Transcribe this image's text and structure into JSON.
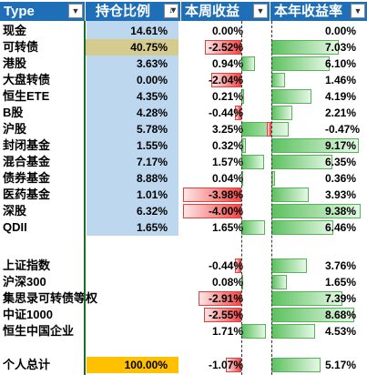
{
  "headers": {
    "type": "Type",
    "holding_ratio": "持仓比例",
    "weekly_return": "本周收益",
    "yearly_return": "本年收益率"
  },
  "colors": {
    "header_bg": "#1f6fb8",
    "holding_bg": "#bdd7ee",
    "highlight_yellow": "#ffc000",
    "highlight_khaki": "#d6cb8e",
    "positive_bar": "#5cc15f",
    "negative_bar": "#f04848",
    "divider_green": "#1e6b2e"
  },
  "rows": [
    {
      "type": "现金",
      "holding": "14.61%",
      "week": "0.00%",
      "week_value": 0.0,
      "year": "0.00%",
      "year_value": 0.0
    },
    {
      "type": "可转债",
      "holding": "40.75%",
      "week": "-2.52%",
      "week_value": -2.52,
      "year": "7.03%",
      "year_value": 7.03,
      "holding_highlight": "khaki"
    },
    {
      "type": "港股",
      "holding": "3.63%",
      "week": "0.94%",
      "week_value": 0.94,
      "year": "6.10%",
      "year_value": 6.1
    },
    {
      "type": "大盘转债",
      "holding": "0.00%",
      "week": "-2.04%",
      "week_value": -2.04,
      "year": "1.46%",
      "year_value": 1.46
    },
    {
      "type": "恒生ETE",
      "holding": "4.35%",
      "week": "0.21%",
      "week_value": 0.21,
      "year": "4.19%",
      "year_value": 4.19
    },
    {
      "type": "B股",
      "holding": "4.28%",
      "week": "-0.44%",
      "week_value": -0.44,
      "year": "2.21%",
      "year_value": 2.21
    },
    {
      "type": "沪股",
      "holding": "5.78%",
      "week": "3.25%",
      "week_value": 3.25,
      "year": "-0.47%",
      "year_value": -0.47
    },
    {
      "type": "封闭基金",
      "holding": "1.55%",
      "week": "0.32%",
      "week_value": 0.32,
      "year": "9.17%",
      "year_value": 9.17
    },
    {
      "type": "混合基金",
      "holding": "7.17%",
      "week": "1.57%",
      "week_value": 1.57,
      "year": "6.35%",
      "year_value": 6.35
    },
    {
      "type": "债券基金",
      "holding": "8.88%",
      "week": "0.04%",
      "week_value": 0.04,
      "year": "0.36%",
      "year_value": 0.36
    },
    {
      "type": "医药基金",
      "holding": "1.01%",
      "week": "-3.98%",
      "week_value": -3.98,
      "year": "3.93%",
      "year_value": 3.93
    },
    {
      "type": "深股",
      "holding": "6.32%",
      "week": "-4.00%",
      "week_value": -4.0,
      "year": "9.38%",
      "year_value": 9.38
    },
    {
      "type": "QDII",
      "holding": "1.65%",
      "week": "1.65%",
      "week_value": 1.65,
      "year": "6.46%",
      "year_value": 6.46
    },
    {
      "type": "",
      "holding": "",
      "week": "",
      "week_value": null,
      "year": "",
      "year_value": null,
      "blank": true
    },
    {
      "type": "上证指数",
      "holding": "",
      "week": "-0.44%",
      "week_value": -0.44,
      "year": "3.76%",
      "year_value": 3.76,
      "no_holding_bg": true
    },
    {
      "type": "沪深300",
      "holding": "",
      "week": "0.08%",
      "week_value": 0.08,
      "year": "1.65%",
      "year_value": 1.65,
      "no_holding_bg": true
    },
    {
      "type": "集思录可转债等权",
      "holding": "",
      "week": "-2.91%",
      "week_value": -2.91,
      "year": "7.39%",
      "year_value": 7.39,
      "no_holding_bg": true
    },
    {
      "type": "中证1000",
      "holding": "",
      "week": "-2.55%",
      "week_value": -2.55,
      "year": "8.68%",
      "year_value": 8.68,
      "no_holding_bg": true
    },
    {
      "type": "恒生中国企业",
      "holding": "",
      "week": "1.71%",
      "week_value": 1.71,
      "year": "4.53%",
      "year_value": 4.53,
      "no_holding_bg": true
    },
    {
      "type": "",
      "holding": "",
      "week": "",
      "week_value": null,
      "year": "",
      "year_value": null,
      "blank": true
    },
    {
      "type": "个人总计",
      "holding": "100.00%",
      "week": "-1.07%",
      "week_value": -1.07,
      "year": "5.17%",
      "year_value": 5.17,
      "holding_highlight": "yellow",
      "no_holding_bg": true
    }
  ]
}
